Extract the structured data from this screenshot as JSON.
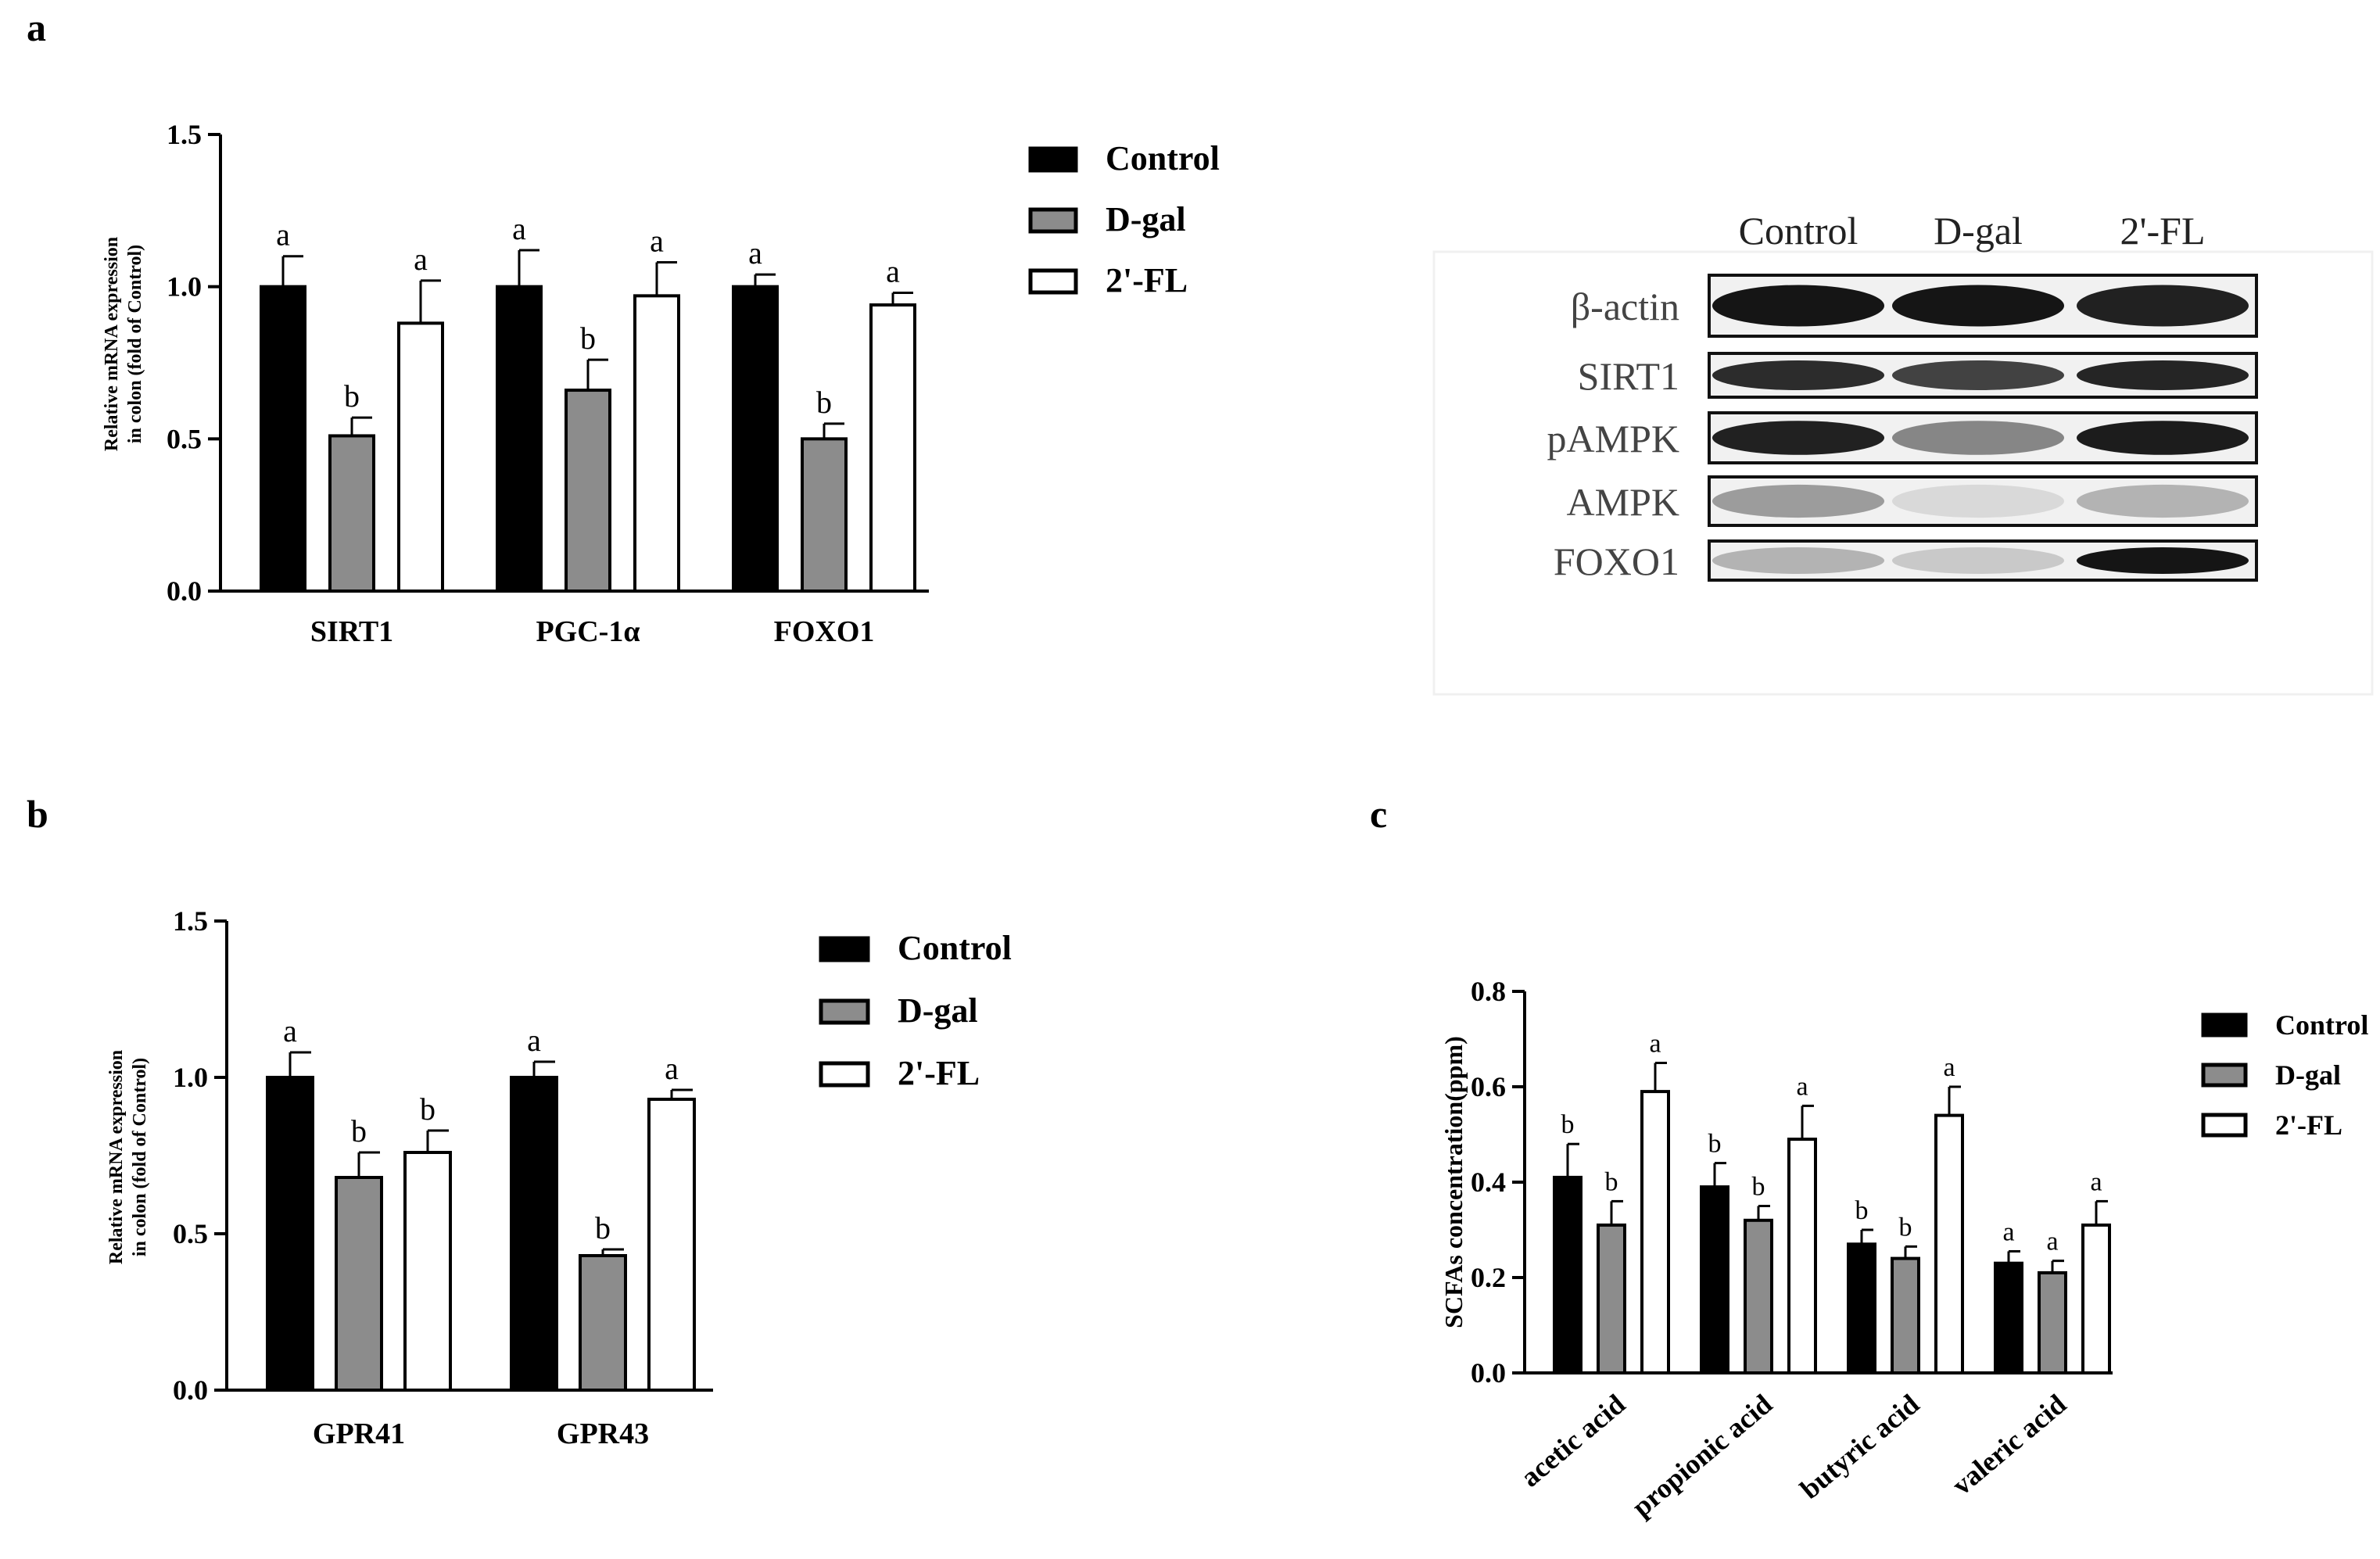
{
  "colors": {
    "Control": "#000000",
    "D-gal": "#8c8c8c",
    "2'-FL": "#ffffff",
    "axis": "#000000"
  },
  "chart_data": [
    {
      "id": "a",
      "panel_label": "a",
      "type": "bar",
      "categories": [
        "SIRT1",
        "PGC-1α",
        "FOXO1"
      ],
      "series": [
        {
          "name": "Control",
          "values": [
            1.0,
            1.0,
            1.0
          ],
          "errors": [
            0.1,
            0.12,
            0.04
          ],
          "letters": [
            "a",
            "a",
            "a"
          ]
        },
        {
          "name": "D-gal",
          "values": [
            0.51,
            0.66,
            0.5
          ],
          "errors": [
            0.06,
            0.1,
            0.05
          ],
          "letters": [
            "b",
            "b",
            "b"
          ]
        },
        {
          "name": "2'-FL",
          "values": [
            0.88,
            0.97,
            0.94
          ],
          "errors": [
            0.14,
            0.11,
            0.04
          ],
          "letters": [
            "a",
            "a",
            "a"
          ]
        }
      ],
      "ylabel_line1": "Relative mRNA expression",
      "ylabel_line2": "in colon (fold of Control)",
      "ylim": [
        0,
        1.5
      ],
      "yticks": [
        "0.0",
        "0.5",
        "1.0",
        "1.5"
      ],
      "ytick_values": [
        0,
        0.5,
        1.0,
        1.5
      ],
      "legend": [
        "Control",
        "D-gal",
        "2'-FL"
      ],
      "legend_position": "top-right"
    },
    {
      "id": "b",
      "panel_label": "b",
      "type": "bar",
      "categories": [
        "GPR41",
        "GPR43"
      ],
      "series": [
        {
          "name": "Control",
          "values": [
            1.0,
            1.0
          ],
          "errors": [
            0.08,
            0.05
          ],
          "letters": [
            "a",
            "a"
          ]
        },
        {
          "name": "D-gal",
          "values": [
            0.68,
            0.43
          ],
          "errors": [
            0.08,
            0.02
          ],
          "letters": [
            "b",
            "b"
          ]
        },
        {
          "name": "2'-FL",
          "values": [
            0.76,
            0.93
          ],
          "errors": [
            0.07,
            0.03
          ],
          "letters": [
            "b",
            "a"
          ]
        }
      ],
      "ylabel_line1": "Relative mRNA expression",
      "ylabel_line2": "in colon (fold of Control)",
      "ylim": [
        0,
        1.5
      ],
      "yticks": [
        "0.0",
        "0.5",
        "1.0",
        "1.5"
      ],
      "ytick_values": [
        0,
        0.5,
        1.0,
        1.5
      ],
      "legend": [
        "Control",
        "D-gal",
        "2'-FL"
      ],
      "legend_position": "top-right"
    },
    {
      "id": "c",
      "panel_label": "c",
      "type": "bar",
      "categories": [
        "acetic acid",
        "propionic acid",
        "butyric acid",
        "valeric acid"
      ],
      "series": [
        {
          "name": "Control",
          "values": [
            0.41,
            0.39,
            0.27,
            0.23
          ],
          "errors": [
            0.07,
            0.05,
            0.03,
            0.025
          ],
          "letters": [
            "b",
            "b",
            "b",
            "a"
          ]
        },
        {
          "name": "D-gal",
          "values": [
            0.31,
            0.32,
            0.24,
            0.21
          ],
          "errors": [
            0.05,
            0.03,
            0.025,
            0.025
          ],
          "letters": [
            "b",
            "b",
            "b",
            "a"
          ]
        },
        {
          "name": "2'-FL",
          "values": [
            0.59,
            0.49,
            0.54,
            0.31
          ],
          "errors": [
            0.06,
            0.07,
            0.06,
            0.05
          ],
          "letters": [
            "a",
            "a",
            "a",
            "a"
          ]
        }
      ],
      "ylabel": "SCFAs concentration(ppm)",
      "ylim": [
        0,
        0.8
      ],
      "yticks": [
        "0.0",
        "0.2",
        "0.4",
        "0.6",
        "0.8"
      ],
      "ytick_values": [
        0,
        0.2,
        0.4,
        0.6,
        0.8
      ],
      "legend": [
        "Control",
        "D-gal",
        "2'-FL"
      ],
      "legend_position": "top-right"
    }
  ],
  "western_blot": {
    "columns": [
      "Control",
      "D-gal",
      "2'-FL"
    ],
    "rows": [
      {
        "label": "β-actin",
        "intensity": [
          0.95,
          0.95,
          0.9
        ]
      },
      {
        "label": "SIRT1",
        "intensity": [
          0.85,
          0.75,
          0.88
        ]
      },
      {
        "label": "pAMPK",
        "intensity": [
          0.9,
          0.45,
          0.92
        ]
      },
      {
        "label": "AMPK",
        "intensity": [
          0.35,
          0.08,
          0.25
        ]
      },
      {
        "label": "FOXO1",
        "intensity": [
          0.25,
          0.15,
          0.95
        ]
      }
    ]
  }
}
